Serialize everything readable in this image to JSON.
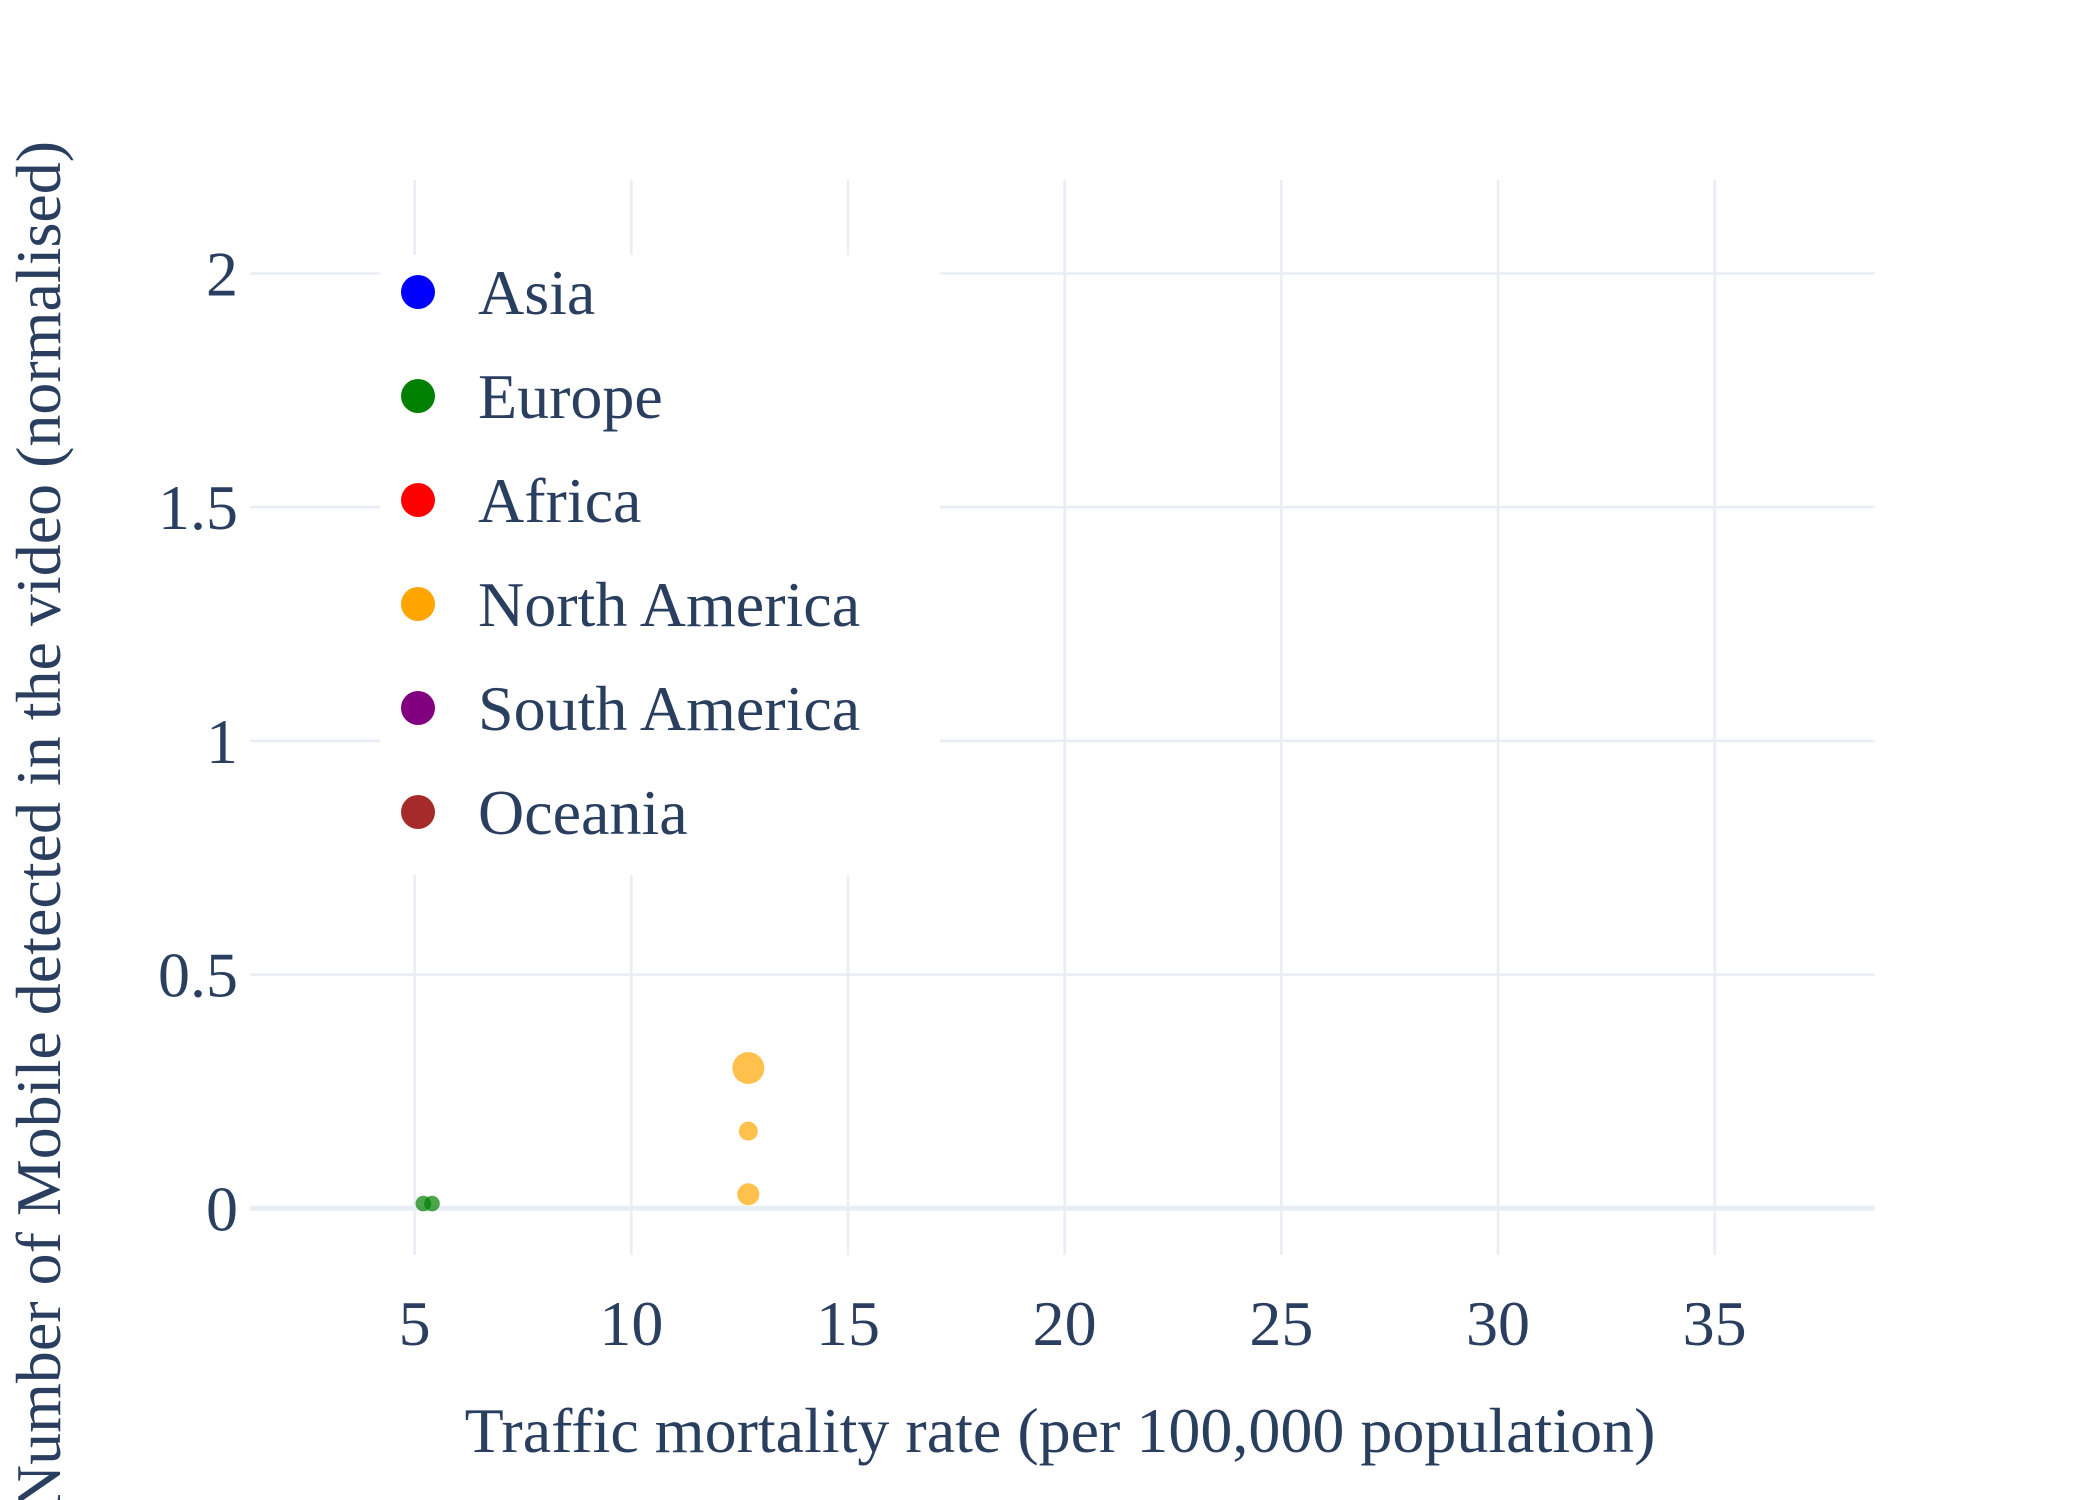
{
  "chart_data": {
    "type": "scatter",
    "title": "",
    "xlabel": "Traffic mortality rate (per 100,000 population)",
    "ylabel": "Number of Mobile detected in the video (normalised)",
    "xlim": [
      1.2,
      38.7
    ],
    "ylim": [
      -0.1,
      2.2
    ],
    "xticks": [
      5,
      10,
      15,
      20,
      25,
      30,
      35
    ],
    "yticks": [
      0,
      0.5,
      1,
      1.5,
      2
    ],
    "ytick_labels": [
      "0",
      "0.5",
      "1",
      "1.5",
      "2"
    ],
    "grid": true,
    "legend_position": "top-left",
    "series": [
      {
        "name": "Asia",
        "color": "#0000ff",
        "points": []
      },
      {
        "name": "Europe",
        "color": "#008000",
        "points": [
          {
            "x": 5.2,
            "y": 0.01,
            "size": 0.02
          },
          {
            "x": 5.4,
            "y": 0.01,
            "size": 0.02
          }
        ]
      },
      {
        "name": "Africa",
        "color": "#ff0000",
        "points": []
      },
      {
        "name": "North America",
        "color": "#ffa500",
        "points": [
          {
            "x": 12.7,
            "y": 0.3,
            "size": 0.3
          },
          {
            "x": 12.7,
            "y": 0.165,
            "size": 0.05
          },
          {
            "x": 12.7,
            "y": 0.03,
            "size": 0.09
          }
        ]
      },
      {
        "name": "South America",
        "color": "#800080",
        "points": []
      },
      {
        "name": "Oceania",
        "color": "#a52a2a",
        "points": []
      }
    ]
  }
}
